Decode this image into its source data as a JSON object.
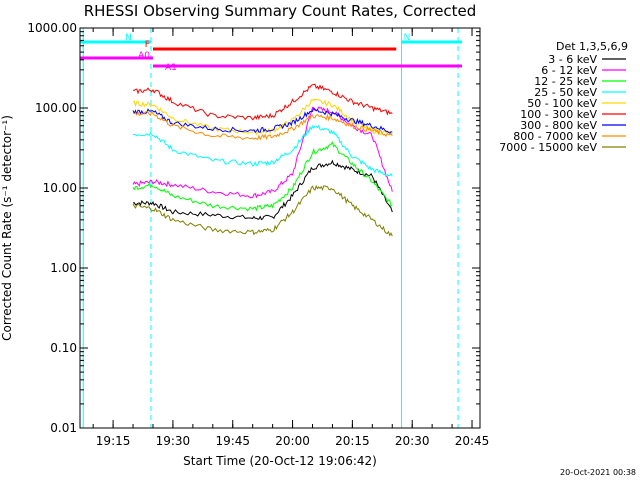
{
  "chart_data": {
    "type": "line",
    "title": "RHESSI Observing Summary Count Rates, Corrected",
    "xlabel": "Start Time (20-Oct-12 19:06:42)",
    "ylabel": "Corrected Count Rate (s⁻¹ detector⁻¹)",
    "y_scale": "log",
    "ylim": [
      0.01,
      1000
    ],
    "xlim": [
      "19:06:42",
      "20:47:00"
    ],
    "x_ticks": [
      "19:15",
      "19:30",
      "19:45",
      "20:00",
      "20:15",
      "20:30",
      "20:45"
    ],
    "y_ticks": [
      "0.01",
      "0.10",
      "1.00",
      "10.00",
      "100.00",
      "1000.00"
    ],
    "legend_title": "Det 1,3,5,6,9",
    "legend_position": "right",
    "series": [
      {
        "name": "3 - 6 keV",
        "color": "#000000",
        "x": [
          "19:20",
          "19:25",
          "19:30",
          "19:40",
          "19:50",
          "19:55",
          "20:00",
          "20:05",
          "20:10",
          "20:15",
          "20:20",
          "20:25"
        ],
        "values": [
          6.5,
          6.5,
          5.0,
          4.6,
          4.2,
          4.3,
          8,
          18,
          21,
          17,
          14,
          5
        ]
      },
      {
        "name": "6 - 12 keV",
        "color": "#ff00ff",
        "x": [
          "19:20",
          "19:25",
          "19:30",
          "19:40",
          "19:50",
          "19:55",
          "20:00",
          "20:05",
          "20:10",
          "20:15",
          "20:20",
          "20:25"
        ],
        "values": [
          11,
          12,
          11,
          9,
          8,
          9,
          15,
          100,
          90,
          60,
          45,
          9
        ]
      },
      {
        "name": "12 - 25 keV",
        "color": "#00ff00",
        "x": [
          "19:20",
          "19:25",
          "19:30",
          "19:40",
          "19:50",
          "19:55",
          "20:00",
          "20:05",
          "20:10",
          "20:15",
          "20:20",
          "20:25"
        ],
        "values": [
          10,
          11,
          8,
          6,
          5.5,
          6,
          10,
          28,
          35,
          20,
          12,
          6
        ]
      },
      {
        "name": "25 - 50 keV",
        "color": "#00ffff",
        "x": [
          "19:20",
          "19:25",
          "19:30",
          "19:40",
          "19:50",
          "19:55",
          "20:00",
          "20:05",
          "20:10",
          "20:15",
          "20:20",
          "20:25"
        ],
        "values": [
          47,
          48,
          30,
          22,
          20,
          21,
          30,
          60,
          50,
          25,
          17,
          14
        ]
      },
      {
        "name": "50 - 100 keV",
        "color": "#ffd700",
        "x": [
          "19:20",
          "19:25",
          "19:30",
          "19:40",
          "19:50",
          "19:55",
          "20:00",
          "20:05",
          "20:10",
          "20:15",
          "20:20",
          "20:25"
        ],
        "values": [
          115,
          110,
          75,
          55,
          50,
          52,
          70,
          125,
          110,
          70,
          52,
          48
        ]
      },
      {
        "name": "100 - 300 keV",
        "color": "#ff0000",
        "x": [
          "19:20",
          "19:25",
          "19:30",
          "19:40",
          "19:50",
          "19:55",
          "20:00",
          "20:05",
          "20:10",
          "20:15",
          "20:20",
          "20:25"
        ],
        "values": [
          160,
          170,
          120,
          80,
          75,
          80,
          120,
          190,
          160,
          120,
          100,
          85
        ]
      },
      {
        "name": "300 - 800 keV",
        "color": "#0000ff",
        "x": [
          "19:20",
          "19:25",
          "19:30",
          "19:40",
          "19:50",
          "19:55",
          "20:00",
          "20:05",
          "20:10",
          "20:15",
          "20:20",
          "20:25"
        ],
        "values": [
          90,
          90,
          65,
          55,
          52,
          55,
          65,
          95,
          85,
          70,
          60,
          50
        ]
      },
      {
        "name": "800 - 7000 keV",
        "color": "#ff8c00",
        "x": [
          "19:20",
          "19:25",
          "19:30",
          "19:40",
          "19:50",
          "19:55",
          "20:00",
          "20:05",
          "20:10",
          "20:15",
          "20:20",
          "20:25"
        ],
        "values": [
          85,
          85,
          60,
          45,
          42,
          44,
          55,
          80,
          75,
          60,
          52,
          45
        ]
      },
      {
        "name": "7000 - 15000 keV",
        "color": "#808000",
        "x": [
          "19:20",
          "19:25",
          "19:30",
          "19:40",
          "19:50",
          "19:55",
          "20:00",
          "20:05",
          "20:10",
          "20:15",
          "20:20",
          "20:25"
        ],
        "values": [
          6,
          5.5,
          4,
          3,
          2.8,
          3,
          5,
          10,
          10,
          6,
          4,
          2.5
        ]
      }
    ],
    "flags": [
      {
        "label": "N",
        "color": "#00ffff",
        "x_start": "19:06:42",
        "x_end": "19:24:30"
      },
      {
        "label": "N",
        "color": "#00ffff",
        "x_start": "20:27:20",
        "x_end": "20:47:00"
      },
      {
        "label": "F",
        "color": "#ff0000",
        "x_start": "19:25:00",
        "x_end": "20:26:00"
      },
      {
        "label": "A0",
        "color": "#ff00ff",
        "x_start": "19:06:42",
        "x_end": "19:25:00"
      },
      {
        "label": "A1",
        "color": "#ff00ff",
        "x_start": "19:25:00",
        "x_end": "20:47:00"
      }
    ],
    "vertical_lines": [
      {
        "x": "19:07:30",
        "color": "#00ffff",
        "style": "solid"
      },
      {
        "x": "19:24:30",
        "color": "#00ffff",
        "style": "dashed"
      },
      {
        "x": "20:27:20",
        "color": "#00ffff",
        "style": "solid"
      },
      {
        "x": "20:41:30",
        "color": "#00ffff",
        "style": "dashed"
      }
    ],
    "grid": false
  },
  "footer": {
    "date_stamp": "20-Oct-2021 00:38"
  }
}
